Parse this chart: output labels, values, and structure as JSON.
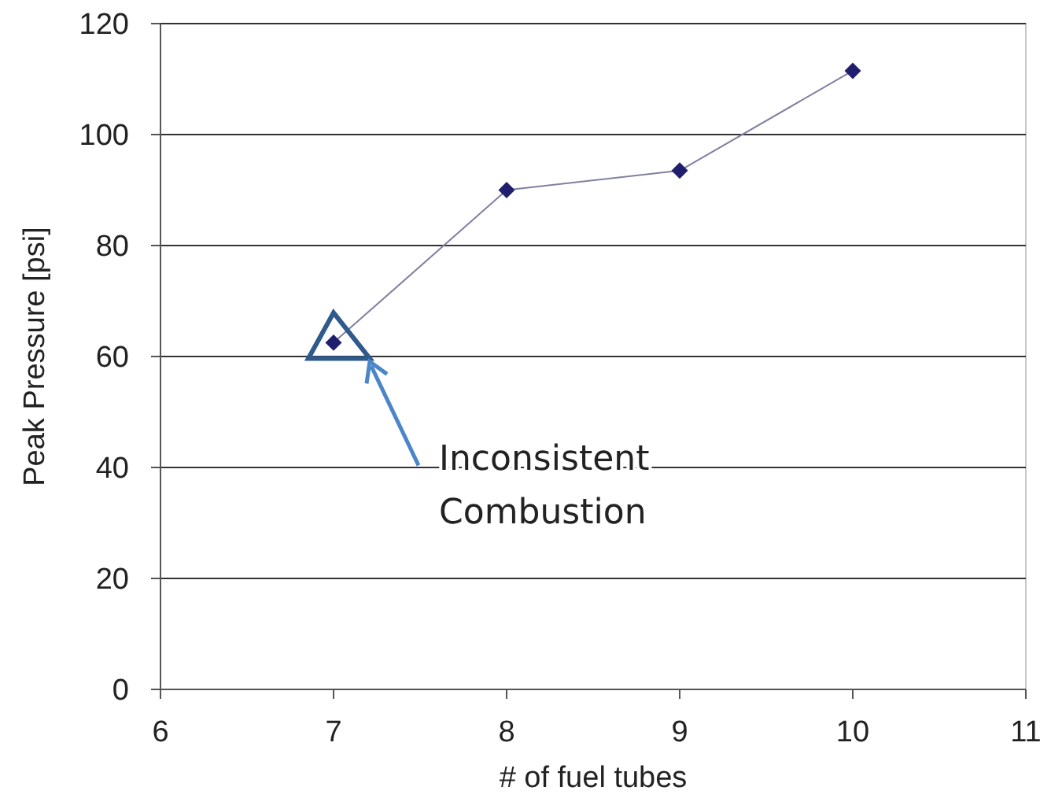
{
  "chart_data": {
    "type": "line",
    "xlabel": "# of fuel tubes",
    "ylabel": "Peak Pressure [psi]",
    "x": [
      7,
      8,
      9,
      10
    ],
    "series": [
      {
        "color": "#1f1f6e",
        "values": [
          62.5,
          90,
          93.5,
          111.5
        ]
      }
    ],
    "xlim": [
      6,
      11
    ],
    "xticks": [
      6,
      7,
      8,
      9,
      10,
      11
    ],
    "ylim": [
      0,
      120
    ],
    "yticks": [
      0,
      20,
      40,
      60,
      80,
      100,
      120
    ],
    "grid": "y",
    "marker": "diamond",
    "line_style": "solid",
    "annotations": [
      "Inconsistent\nCombustion"
    ]
  }
}
